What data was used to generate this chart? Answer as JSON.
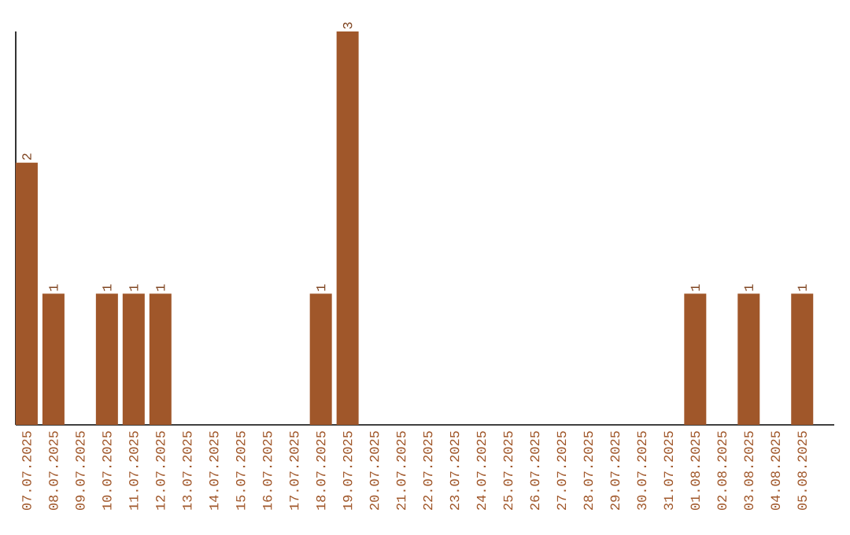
{
  "chart_data": {
    "type": "bar",
    "categories": [
      "07.07.2025",
      "08.07.2025",
      "09.07.2025",
      "10.07.2025",
      "11.07.2025",
      "12.07.2025",
      "13.07.2025",
      "14.07.2025",
      "15.07.2025",
      "16.07.2025",
      "17.07.2025",
      "18.07.2025",
      "19.07.2025",
      "20.07.2025",
      "21.07.2025",
      "22.07.2025",
      "23.07.2025",
      "24.07.2025",
      "25.07.2025",
      "26.07.2025",
      "27.07.2025",
      "28.07.2025",
      "29.07.2025",
      "30.07.2025",
      "31.07.2025",
      "01.08.2025",
      "02.08.2025",
      "03.08.2025",
      "04.08.2025",
      "05.08.2025"
    ],
    "values": [
      2,
      1,
      0,
      1,
      1,
      1,
      0,
      0,
      0,
      0,
      0,
      1,
      3,
      0,
      0,
      0,
      0,
      0,
      0,
      0,
      0,
      0,
      0,
      0,
      0,
      1,
      0,
      1,
      0,
      1
    ],
    "value_labels": [
      "2",
      "1",
      null,
      "1",
      "1",
      "1",
      null,
      null,
      null,
      null,
      null,
      "1",
      "3",
      null,
      null,
      null,
      null,
      null,
      null,
      null,
      null,
      null,
      null,
      null,
      null,
      "1",
      null,
      "1",
      null,
      "1"
    ],
    "color": "#a0572a",
    "ylim": [
      0,
      3
    ],
    "tick_labels": "x",
    "grid": false
  }
}
